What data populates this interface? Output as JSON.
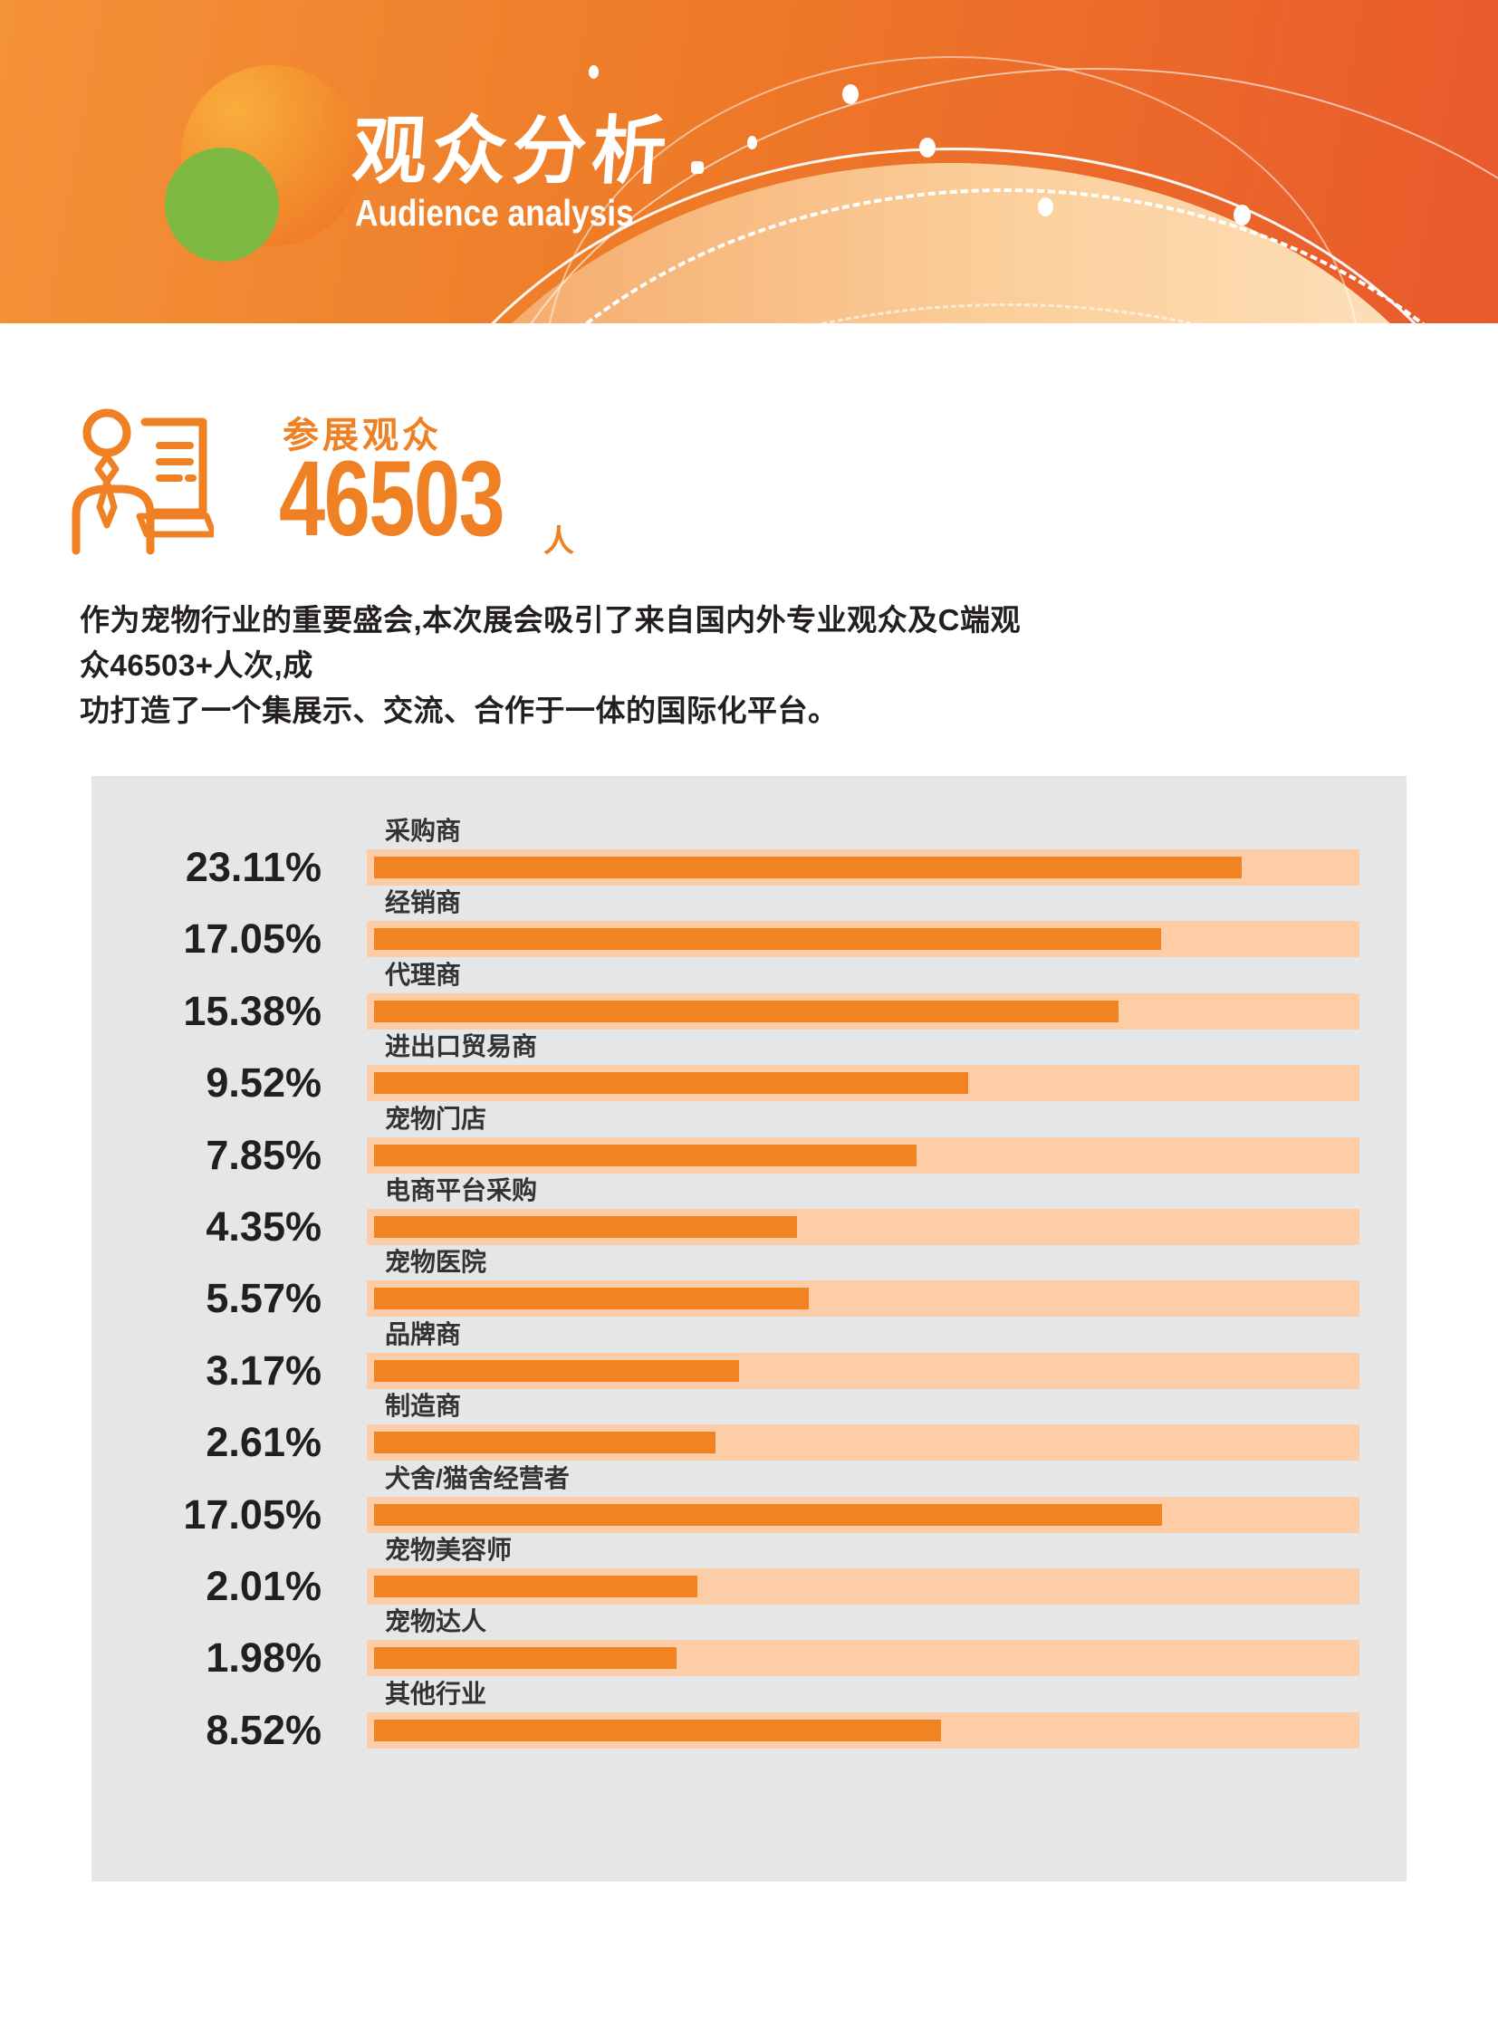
{
  "header": {
    "title": "观众分析",
    "subtitle": "Audience analysis"
  },
  "stats": {
    "label": "参展观众",
    "value": "46503",
    "unit": "人"
  },
  "intro": {
    "text": "作为宠物行业的重要盛会,本次展会吸引了来自国内外专业观众及C端观众46503+人次,成\n功打造了一个集展示、交流、合作于一体的国际化平台。"
  },
  "chart_data": {
    "type": "bar",
    "orientation": "horizontal",
    "title": "",
    "unit": "%",
    "legend": null,
    "grid": false,
    "categories": [
      "采购商",
      "经销商",
      "代理商",
      "进出口贸易商",
      "宠物门店",
      "电商平台采购",
      "宠物医院",
      "品牌商",
      "制造商",
      "犬舍/猫舍经营者",
      "宠物美容师",
      "宠物达人",
      "其他行业"
    ],
    "values": [
      23.11,
      17.05,
      15.38,
      9.52,
      7.85,
      4.35,
      5.57,
      3.17,
      2.61,
      17.05,
      2.01,
      1.98,
      8.52
    ],
    "percent_labels": [
      "23.11%",
      "17.05%",
      "15.38%",
      "9.52%",
      "7.85%",
      "4.35%",
      "5.57%",
      "3.17%",
      "2.61%",
      "17.05%",
      "2.01%",
      "1.98%",
      "8.52%"
    ],
    "bar_ratios": [
      0.887,
      0.805,
      0.761,
      0.607,
      0.555,
      0.432,
      0.444,
      0.373,
      0.349,
      0.806,
      0.331,
      0.309,
      0.58
    ],
    "colors": {
      "bar": "#f28322",
      "track": "#fccda6",
      "panel": "#e5e6e8",
      "value_text": "#221f20",
      "label_text": "#333333"
    }
  },
  "theme": {
    "banner_orange_left": "#f49238",
    "banner_orange_right": "#e9592c",
    "banner_glow": "#fde3c0",
    "accent_orange": "#ef8124",
    "logo_green": "#7db942",
    "body_text": "#231f20"
  }
}
